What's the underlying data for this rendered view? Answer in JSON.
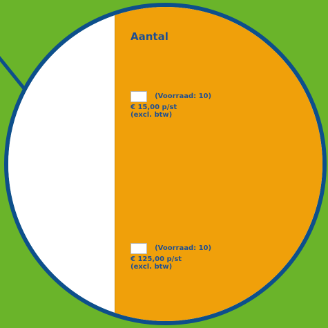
{
  "colors": {
    "background": "#6ab42a",
    "border": "#0d4f8b",
    "panel": "#f0a00a",
    "text": "#1f4f91"
  },
  "header": {
    "title": "Aantal"
  },
  "items": [
    {
      "stock_label": "(Voorraad: 10)",
      "price_label": "€ 15,00 p/st",
      "vat_label": "(excl. btw)",
      "quantity_value": ""
    },
    {
      "stock_label": "(Voorraad: 10)",
      "price_label": "€ 125,00 p/st",
      "vat_label": "(excl. btw)",
      "quantity_value": ""
    }
  ]
}
